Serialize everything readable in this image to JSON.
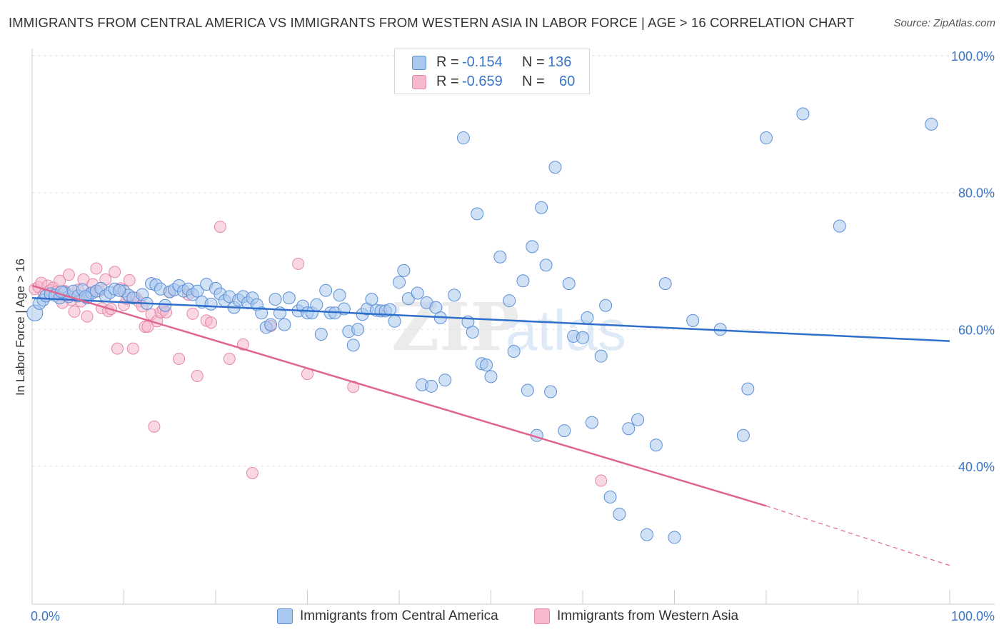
{
  "title": "IMMIGRANTS FROM CENTRAL AMERICA VS IMMIGRANTS FROM WESTERN ASIA IN LABOR FORCE | AGE > 16 CORRELATION CHART",
  "source": "Source: ZipAtlas.com",
  "watermark": "ZIPatlas",
  "colors": {
    "blue_fill": "#a9c8ef",
    "blue_stroke": "#5b8fd6",
    "blue_line": "#2f6fcc",
    "pink_fill": "#f6b8cc",
    "pink_stroke": "#e687a6",
    "pink_line": "#e06490",
    "value_text": "#3a76c6"
  },
  "legend": {
    "series": [
      {
        "r_label": "R =",
        "r_value": "-0.154",
        "n_label": "N =",
        "n_value": "136"
      },
      {
        "r_label": "R =",
        "r_value": "-0.659",
        "n_label": "N =",
        "n_value": "60"
      }
    ]
  },
  "bottom_legend": [
    "Immigrants from Central America",
    "Immigrants from Western Asia"
  ],
  "chart_data": {
    "type": "scatter",
    "title": "IMMIGRANTS FROM CENTRAL AMERICA VS IMMIGRANTS FROM WESTERN ASIA IN LABOR FORCE | AGE > 16 CORRELATION CHART",
    "xlabel": "",
    "ylabel": "In Labor Force | Age > 16",
    "xlim": [
      0,
      100
    ],
    "ylim": [
      20,
      105
    ],
    "x_tick_labels": [
      "0.0%",
      "100.0%"
    ],
    "y_ticks": [
      40,
      60,
      80,
      100
    ],
    "y_tick_labels": [
      "40.0%",
      "60.0%",
      "80.0%",
      "100.0%"
    ],
    "grid": true,
    "legend_placement": "top-center",
    "series": [
      {
        "name": "Immigrants from Central America",
        "color": "#a9c8ef",
        "trend": {
          "x": [
            0,
            100
          ],
          "y": [
            64.6,
            58.3
          ]
        },
        "points": [
          [
            0.3,
            62.4
          ],
          [
            0.8,
            63.8
          ],
          [
            1.2,
            64.3
          ],
          [
            1.5,
            64.9
          ],
          [
            2.0,
            65.2
          ],
          [
            2.5,
            65.0
          ],
          [
            3.0,
            64.6
          ],
          [
            3.5,
            65.4
          ],
          [
            4.0,
            64.8
          ],
          [
            4.5,
            65.6
          ],
          [
            5.0,
            64.9
          ],
          [
            5.5,
            65.8
          ],
          [
            6.0,
            64.6
          ],
          [
            6.5,
            65.3
          ],
          [
            7.0,
            65.6
          ],
          [
            7.5,
            66.0
          ],
          [
            8.0,
            64.9
          ],
          [
            8.5,
            65.4
          ],
          [
            9.0,
            65.9
          ],
          [
            10.0,
            65.6
          ],
          [
            10.5,
            65.0
          ],
          [
            11.0,
            64.6
          ],
          [
            12.0,
            65.1
          ],
          [
            12.5,
            63.8
          ],
          [
            13.0,
            66.7
          ],
          [
            13.5,
            66.5
          ],
          [
            14.0,
            65.9
          ],
          [
            14.5,
            63.5
          ],
          [
            15.0,
            65.5
          ],
          [
            15.5,
            65.8
          ],
          [
            16.0,
            66.4
          ],
          [
            16.5,
            65.6
          ],
          [
            17.0,
            65.9
          ],
          [
            17.5,
            65.1
          ],
          [
            18.0,
            65.6
          ],
          [
            18.5,
            64.0
          ],
          [
            19.0,
            66.6
          ],
          [
            19.5,
            63.7
          ],
          [
            20.0,
            66.0
          ],
          [
            20.5,
            65.2
          ],
          [
            21.0,
            64.2
          ],
          [
            21.5,
            64.8
          ],
          [
            22.0,
            63.2
          ],
          [
            22.5,
            64.3
          ],
          [
            23.0,
            64.8
          ],
          [
            23.5,
            63.9
          ],
          [
            24.0,
            64.6
          ],
          [
            24.5,
            63.6
          ],
          [
            25.0,
            62.4
          ],
          [
            25.5,
            60.3
          ],
          [
            26.0,
            60.7
          ],
          [
            26.5,
            64.4
          ],
          [
            27.0,
            62.4
          ],
          [
            27.5,
            60.7
          ],
          [
            28.0,
            64.6
          ],
          [
            29.0,
            62.7
          ],
          [
            29.5,
            63.4
          ],
          [
            30.0,
            62.4
          ],
          [
            30.5,
            62.4
          ],
          [
            31.0,
            63.6
          ],
          [
            31.5,
            59.3
          ],
          [
            32.0,
            65.7
          ],
          [
            32.5,
            62.4
          ],
          [
            33.0,
            62.4
          ],
          [
            33.5,
            65.0
          ],
          [
            34.0,
            63.0
          ],
          [
            34.5,
            59.7
          ],
          [
            35.0,
            57.7
          ],
          [
            35.5,
            60.0
          ],
          [
            36.0,
            62.2
          ],
          [
            36.5,
            63.0
          ],
          [
            37.0,
            64.4
          ],
          [
            37.5,
            62.8
          ],
          [
            38.0,
            62.7
          ],
          [
            38.5,
            62.7
          ],
          [
            39.0,
            62.9
          ],
          [
            39.5,
            61.2
          ],
          [
            40.0,
            66.9
          ],
          [
            40.5,
            68.6
          ],
          [
            41.0,
            64.5
          ],
          [
            42.0,
            65.3
          ],
          [
            42.5,
            51.9
          ],
          [
            43.0,
            63.9
          ],
          [
            43.5,
            51.7
          ],
          [
            44.0,
            63.2
          ],
          [
            44.5,
            61.7
          ],
          [
            45.0,
            52.6
          ],
          [
            46.0,
            65.0
          ],
          [
            47.0,
            88.0
          ],
          [
            47.5,
            61.1
          ],
          [
            48.0,
            59.6
          ],
          [
            48.5,
            76.9
          ],
          [
            49.0,
            55.0
          ],
          [
            49.5,
            54.8
          ],
          [
            50.0,
            53.1
          ],
          [
            51.0,
            70.6
          ],
          [
            52.0,
            64.2
          ],
          [
            52.5,
            56.8
          ],
          [
            53.5,
            67.1
          ],
          [
            54.0,
            51.1
          ],
          [
            54.5,
            72.1
          ],
          [
            55.0,
            44.5
          ],
          [
            55.5,
            77.8
          ],
          [
            56.0,
            69.4
          ],
          [
            56.5,
            50.9
          ],
          [
            57.0,
            83.7
          ],
          [
            58.0,
            45.2
          ],
          [
            58.5,
            66.7
          ],
          [
            59.0,
            59.0
          ],
          [
            60.0,
            58.8
          ],
          [
            60.5,
            61.7
          ],
          [
            61.0,
            46.4
          ],
          [
            62.0,
            56.1
          ],
          [
            62.5,
            63.5
          ],
          [
            63.0,
            35.5
          ],
          [
            64.0,
            33.0
          ],
          [
            65.0,
            45.5
          ],
          [
            66.0,
            46.8
          ],
          [
            67.0,
            30.0
          ],
          [
            68.0,
            43.1
          ],
          [
            69.0,
            66.7
          ],
          [
            70.0,
            29.6
          ],
          [
            72.0,
            61.3
          ],
          [
            75.0,
            60.0
          ],
          [
            78.0,
            51.3
          ],
          [
            80.0,
            88.0
          ],
          [
            84.0,
            91.5
          ],
          [
            88.0,
            75.1
          ],
          [
            98.0,
            90.0
          ],
          [
            77.5,
            44.5
          ],
          [
            3.2,
            65.5
          ],
          [
            5.8,
            64.8
          ],
          [
            9.5,
            65.7
          ]
        ]
      },
      {
        "name": "Immigrants from Western Asia",
        "color": "#f6b8cc",
        "trend": {
          "x": [
            0,
            80
          ],
          "y": [
            66.4,
            34.2
          ]
        },
        "trend_dashed": {
          "x": [
            80,
            100
          ],
          "y": [
            34.2,
            25.5
          ]
        },
        "points": [
          [
            0.3,
            65.9
          ],
          [
            0.7,
            66.2
          ],
          [
            1.0,
            66.8
          ],
          [
            1.3,
            65.1
          ],
          [
            1.7,
            66.4
          ],
          [
            2.0,
            65.7
          ],
          [
            2.3,
            66.1
          ],
          [
            2.6,
            65.5
          ],
          [
            3.0,
            67.1
          ],
          [
            3.3,
            63.9
          ],
          [
            3.6,
            65.6
          ],
          [
            4.0,
            68.0
          ],
          [
            4.3,
            64.3
          ],
          [
            4.6,
            62.6
          ],
          [
            5.0,
            65.8
          ],
          [
            5.3,
            64.1
          ],
          [
            5.6,
            67.3
          ],
          [
            6.0,
            61.9
          ],
          [
            6.3,
            65.3
          ],
          [
            6.6,
            66.6
          ],
          [
            7.0,
            68.9
          ],
          [
            7.3,
            65.6
          ],
          [
            7.6,
            63.1
          ],
          [
            8.0,
            67.3
          ],
          [
            8.3,
            62.7
          ],
          [
            8.6,
            63.0
          ],
          [
            9.0,
            68.4
          ],
          [
            9.3,
            57.2
          ],
          [
            9.6,
            66.0
          ],
          [
            10.0,
            63.6
          ],
          [
            10.3,
            64.5
          ],
          [
            10.6,
            67.2
          ],
          [
            11.0,
            57.2
          ],
          [
            11.3,
            64.6
          ],
          [
            11.6,
            64.1
          ],
          [
            12.0,
            63.4
          ],
          [
            12.3,
            60.4
          ],
          [
            12.6,
            60.4
          ],
          [
            13.0,
            62.2
          ],
          [
            13.3,
            45.8
          ],
          [
            13.6,
            61.2
          ],
          [
            14.0,
            62.5
          ],
          [
            14.3,
            62.9
          ],
          [
            14.6,
            62.5
          ],
          [
            15.0,
            65.5
          ],
          [
            16.0,
            55.7
          ],
          [
            17.0,
            65.1
          ],
          [
            17.5,
            62.3
          ],
          [
            18.0,
            53.2
          ],
          [
            19.0,
            61.3
          ],
          [
            19.5,
            61.0
          ],
          [
            20.5,
            75.0
          ],
          [
            21.5,
            55.7
          ],
          [
            23.0,
            57.8
          ],
          [
            24.0,
            39.0
          ],
          [
            26.0,
            60.5
          ],
          [
            29.0,
            69.6
          ],
          [
            30.0,
            53.5
          ],
          [
            35.0,
            51.6
          ],
          [
            62.0,
            37.9
          ]
        ]
      }
    ]
  }
}
